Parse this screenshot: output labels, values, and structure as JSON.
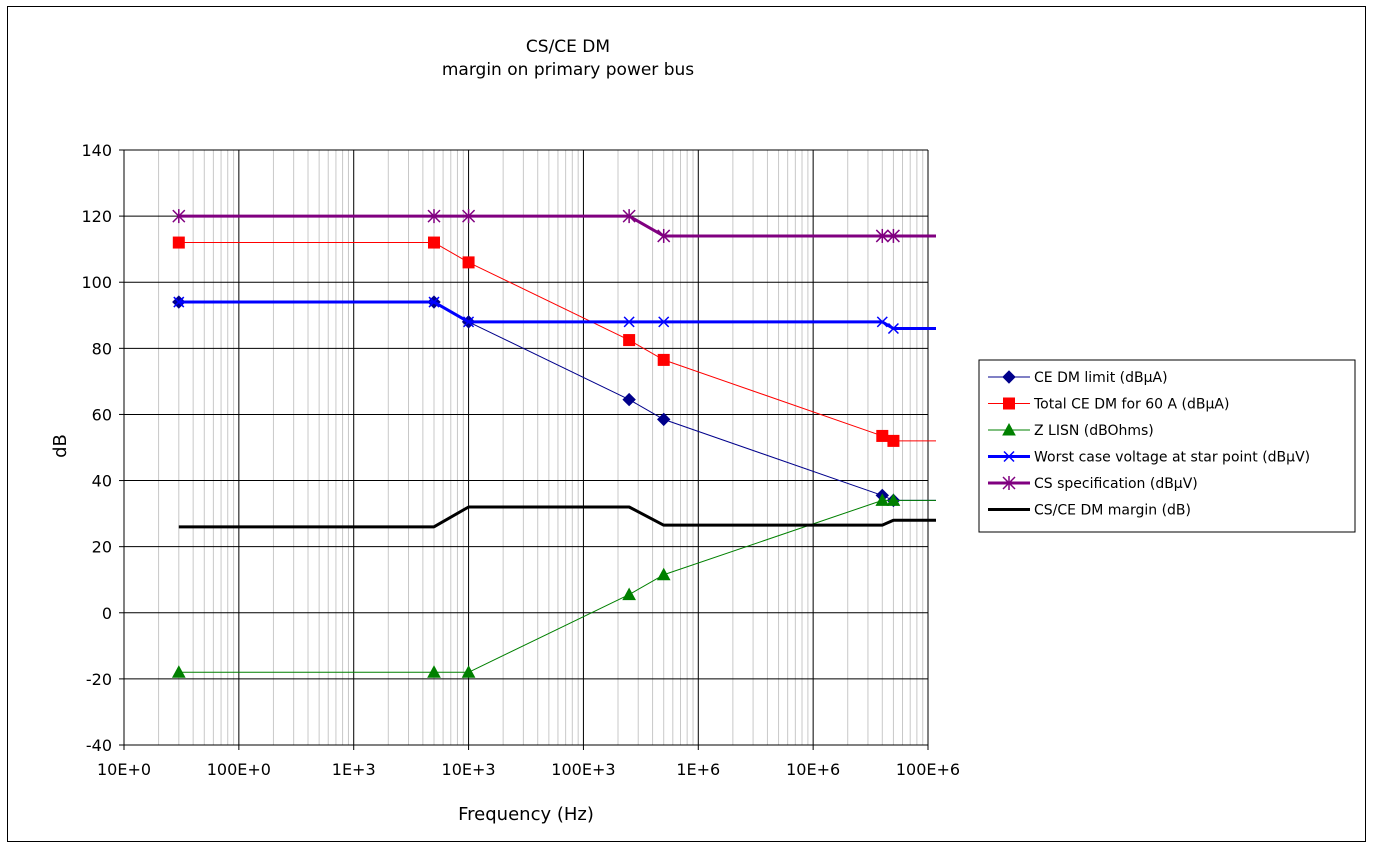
{
  "chart_data": {
    "type": "line",
    "title": "CS/CE DM",
    "subtitle": "margin on primary power bus",
    "xlabel": "Frequency (Hz)",
    "ylabel": "dB",
    "x_scale": "log",
    "xlim": [
      10,
      100000000
    ],
    "ylim": [
      -40,
      140
    ],
    "x_ticks": [
      {
        "value": 10,
        "label": "10E+0"
      },
      {
        "value": 100,
        "label": "100E+0"
      },
      {
        "value": 1000,
        "label": "1E+3"
      },
      {
        "value": 10000,
        "label": "10E+3"
      },
      {
        "value": 100000,
        "label": "100E+3"
      },
      {
        "value": 1000000,
        "label": "1E+6"
      },
      {
        "value": 10000000,
        "label": "10E+6"
      },
      {
        "value": 100000000,
        "label": "100E+6"
      }
    ],
    "y_ticks": [
      -40,
      -20,
      0,
      20,
      40,
      60,
      80,
      100,
      120,
      140
    ],
    "grid": true,
    "legend_position": "right",
    "series": [
      {
        "name": "CE DM limit (dBµA)",
        "color": "#00008B",
        "marker": "diamond",
        "line_width": 1,
        "x": [
          30,
          5000,
          10000,
          250000,
          500000,
          40000000,
          50000000,
          500000000
        ],
        "y": [
          94,
          94,
          88,
          64.5,
          58.5,
          35.5,
          34,
          34
        ]
      },
      {
        "name": "Total CE DM for 60 A (dBµA)",
        "color": "#FF0000",
        "marker": "square",
        "line_width": 1,
        "x": [
          30,
          5000,
          10000,
          250000,
          500000,
          40000000,
          50000000,
          500000000
        ],
        "y": [
          112,
          112,
          106,
          82.5,
          76.5,
          53.5,
          52,
          52
        ]
      },
      {
        "name": "Z LISN (dBOhms)",
        "color": "#008000",
        "marker": "triangle",
        "line_width": 1,
        "x": [
          30,
          5000,
          10000,
          250000,
          500000,
          40000000,
          50000000,
          500000000
        ],
        "y": [
          -18,
          -18,
          -18,
          5.5,
          11.5,
          34,
          34,
          34
        ]
      },
      {
        "name": "Worst case voltage at star point (dBµV)",
        "color": "#0000FF",
        "marker": "x",
        "line_width": 3,
        "x": [
          30,
          5000,
          10000,
          250000,
          500000,
          40000000,
          50000000,
          500000000
        ],
        "y": [
          94,
          94,
          88,
          88,
          88,
          88,
          86,
          86
        ]
      },
      {
        "name": "CS specification (dBµV)",
        "color": "#800080",
        "marker": "star",
        "line_width": 3,
        "x": [
          30,
          5000,
          10000,
          250000,
          500000,
          40000000,
          50000000,
          500000000
        ],
        "y": [
          120,
          120,
          120,
          120,
          114,
          114,
          114,
          114
        ]
      },
      {
        "name": "CS/CE DM margin (dB)",
        "color": "#000000",
        "marker": "none",
        "line_width": 3,
        "x": [
          30,
          5000,
          10000,
          250000,
          500000,
          40000000,
          50000000,
          500000000
        ],
        "y": [
          26,
          26,
          32,
          32,
          26.5,
          26.5,
          28,
          28
        ]
      }
    ]
  }
}
